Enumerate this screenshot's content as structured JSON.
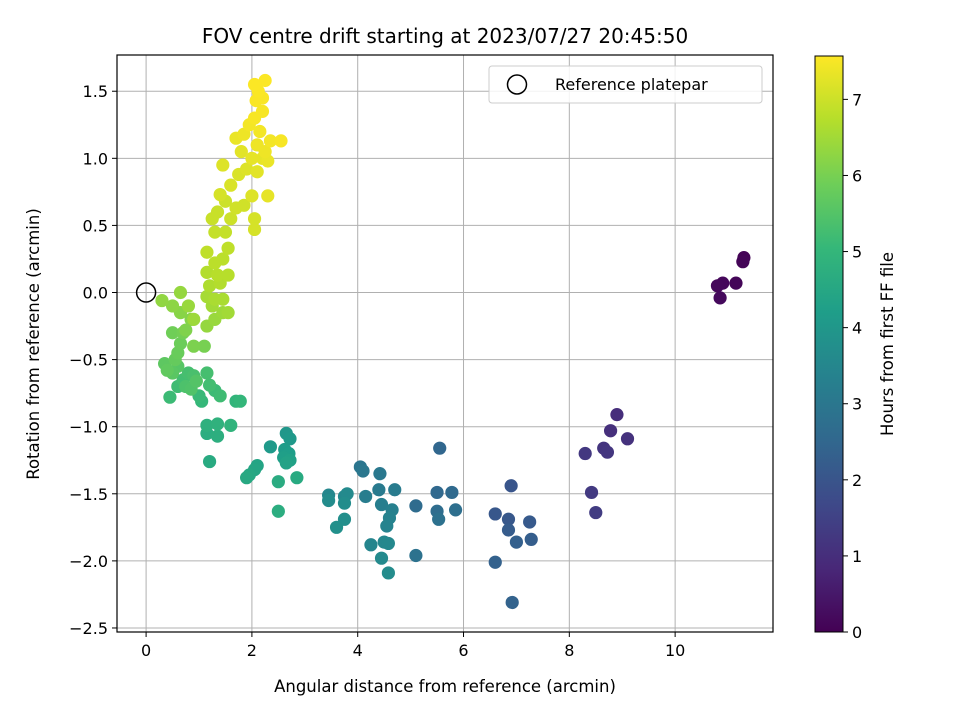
{
  "chart_data": {
    "type": "scatter",
    "title": "FOV centre drift starting at 2023/07/27 20:45:50",
    "xlabel": "Angular distance from reference (arcmin)",
    "ylabel": "Rotation from reference (arcmin)",
    "xlim": [
      -0.55,
      11.85
    ],
    "ylim": [
      -2.53,
      1.77
    ],
    "xticks": [
      0,
      2,
      4,
      6,
      8,
      10
    ],
    "yticks": [
      -2.5,
      -2.0,
      -1.5,
      -1.0,
      -0.5,
      0.0,
      0.5,
      1.0,
      1.5
    ],
    "xtick_labels": [
      "0",
      "2",
      "4",
      "6",
      "8",
      "10"
    ],
    "ytick_labels": [
      "−2.5",
      "−2.0",
      "−1.5",
      "−1.0",
      "−0.5",
      "0.0",
      "0.5",
      "1.0",
      "1.5"
    ],
    "grid": true,
    "legend": {
      "placement": "top-right",
      "entries": [
        {
          "label": "Reference platepar",
          "marker": "open-circle",
          "color": "#000000"
        }
      ]
    },
    "reference_point": {
      "x": 0.0,
      "y": 0.0
    },
    "colorbar": {
      "label": "Hours from first FF file",
      "range": [
        0,
        7.57
      ],
      "ticks": [
        0,
        1,
        2,
        3,
        4,
        5,
        6,
        7
      ],
      "tick_labels": [
        "0",
        "1",
        "2",
        "3",
        "4",
        "5",
        "6",
        "7"
      ],
      "colormap": "viridis",
      "stops": [
        "#440154",
        "#482878",
        "#3e4989",
        "#31688e",
        "#26828e",
        "#1f9e89",
        "#35b779",
        "#6ece58",
        "#b5de2b",
        "#fde725"
      ]
    },
    "points": [
      [
        11.3,
        0.26,
        0.05
      ],
      [
        11.28,
        0.23,
        0.08
      ],
      [
        11.15,
        0.07,
        0.1
      ],
      [
        10.9,
        0.07,
        0.13
      ],
      [
        10.8,
        0.05,
        0.15
      ],
      [
        10.85,
        -0.04,
        0.18
      ],
      [
        8.9,
        -0.91,
        1.0
      ],
      [
        8.78,
        -1.03,
        1.05
      ],
      [
        9.1,
        -1.09,
        1.1
      ],
      [
        8.65,
        -1.16,
        1.15
      ],
      [
        8.72,
        -1.19,
        1.2
      ],
      [
        8.3,
        -1.2,
        1.25
      ],
      [
        8.42,
        -1.49,
        1.3
      ],
      [
        8.5,
        -1.64,
        1.35
      ],
      [
        6.9,
        -1.44,
        2.0
      ],
      [
        6.6,
        -1.65,
        2.05
      ],
      [
        6.85,
        -1.69,
        2.1
      ],
      [
        7.25,
        -1.71,
        2.15
      ],
      [
        6.85,
        -1.77,
        2.2
      ],
      [
        7.28,
        -1.84,
        2.25
      ],
      [
        7.0,
        -1.86,
        2.3
      ],
      [
        6.6,
        -2.01,
        2.35
      ],
      [
        6.92,
        -2.31,
        2.4
      ],
      [
        5.55,
        -1.16,
        2.5
      ],
      [
        5.5,
        -1.49,
        2.55
      ],
      [
        5.78,
        -1.49,
        2.6
      ],
      [
        5.1,
        -1.59,
        2.65
      ],
      [
        5.5,
        -1.63,
        2.7
      ],
      [
        5.85,
        -1.62,
        2.75
      ],
      [
        5.53,
        -1.69,
        2.8
      ],
      [
        5.1,
        -1.96,
        2.85
      ],
      [
        4.05,
        -1.3,
        2.95
      ],
      [
        4.1,
        -1.33,
        3.0
      ],
      [
        4.42,
        -1.35,
        3.05
      ],
      [
        4.4,
        -1.47,
        3.1
      ],
      [
        4.7,
        -1.47,
        3.15
      ],
      [
        4.15,
        -1.52,
        3.2
      ],
      [
        4.45,
        -1.58,
        3.25
      ],
      [
        4.65,
        -1.62,
        3.3
      ],
      [
        4.6,
        -1.68,
        3.35
      ],
      [
        4.55,
        -1.74,
        3.4
      ],
      [
        4.25,
        -1.88,
        3.45
      ],
      [
        4.5,
        -1.86,
        3.5
      ],
      [
        4.58,
        -1.87,
        3.55
      ],
      [
        4.45,
        -1.98,
        3.6
      ],
      [
        4.58,
        -2.09,
        3.65
      ],
      [
        3.45,
        -1.51,
        3.5
      ],
      [
        3.75,
        -1.52,
        3.55
      ],
      [
        3.8,
        -1.5,
        3.6
      ],
      [
        3.45,
        -1.55,
        3.65
      ],
      [
        3.75,
        -1.57,
        3.7
      ],
      [
        3.75,
        -1.69,
        3.75
      ],
      [
        3.6,
        -1.75,
        3.8
      ],
      [
        2.65,
        -1.05,
        4.0
      ],
      [
        2.72,
        -1.09,
        4.05
      ],
      [
        2.35,
        -1.15,
        4.1
      ],
      [
        2.62,
        -1.17,
        4.15
      ],
      [
        2.7,
        -1.2,
        4.2
      ],
      [
        2.6,
        -1.23,
        4.25
      ],
      [
        2.72,
        -1.25,
        4.3
      ],
      [
        2.65,
        -1.27,
        4.35
      ],
      [
        2.1,
        -1.29,
        4.4
      ],
      [
        2.05,
        -1.32,
        4.45
      ],
      [
        1.95,
        -1.36,
        4.5
      ],
      [
        1.9,
        -1.38,
        4.55
      ],
      [
        2.85,
        -1.38,
        4.6
      ],
      [
        2.5,
        -1.41,
        4.65
      ],
      [
        2.5,
        -1.63,
        4.7
      ],
      [
        1.2,
        -1.26,
        4.6
      ],
      [
        1.15,
        -1.05,
        4.7
      ],
      [
        1.35,
        -1.07,
        4.75
      ],
      [
        1.15,
        -0.99,
        4.8
      ],
      [
        1.35,
        -0.98,
        4.85
      ],
      [
        1.6,
        -0.99,
        4.9
      ],
      [
        1.7,
        -0.81,
        4.95
      ],
      [
        1.78,
        -0.81,
        5.0
      ],
      [
        1.05,
        -0.81,
        5.05
      ],
      [
        1.0,
        -0.77,
        5.1
      ],
      [
        1.3,
        -0.73,
        5.15
      ],
      [
        1.4,
        -0.77,
        5.2
      ],
      [
        1.2,
        -0.69,
        5.25
      ],
      [
        1.15,
        -0.6,
        5.3
      ],
      [
        0.45,
        -0.78,
        5.15
      ],
      [
        0.6,
        -0.7,
        5.2
      ],
      [
        0.7,
        -0.65,
        5.25
      ],
      [
        0.8,
        -0.6,
        5.3
      ],
      [
        0.9,
        -0.62,
        5.35
      ],
      [
        0.75,
        -0.7,
        5.4
      ],
      [
        0.85,
        -0.72,
        5.45
      ],
      [
        0.95,
        -0.66,
        5.5
      ],
      [
        0.6,
        -0.55,
        5.55
      ],
      [
        0.5,
        -0.6,
        5.6
      ],
      [
        0.35,
        -0.53,
        5.65
      ],
      [
        0.4,
        -0.58,
        5.7
      ],
      [
        0.55,
        -0.5,
        5.75
      ],
      [
        0.6,
        -0.45,
        5.8
      ],
      [
        0.65,
        -0.38,
        5.85
      ],
      [
        0.5,
        -0.3,
        5.9
      ],
      [
        0.7,
        -0.3,
        5.95
      ],
      [
        1.1,
        -0.4,
        6.0
      ],
      [
        0.9,
        -0.4,
        6.05
      ],
      [
        0.75,
        -0.28,
        6.1
      ],
      [
        0.85,
        -0.2,
        6.15
      ],
      [
        0.65,
        -0.15,
        6.2
      ],
      [
        0.5,
        -0.1,
        6.25
      ],
      [
        0.3,
        -0.06,
        6.3
      ],
      [
        0.65,
        0.0,
        6.35
      ],
      [
        0.8,
        -0.1,
        6.4
      ],
      [
        0.9,
        -0.2,
        6.45
      ],
      [
        1.15,
        -0.25,
        6.35
      ],
      [
        1.3,
        -0.2,
        6.4
      ],
      [
        1.45,
        -0.15,
        6.45
      ],
      [
        1.25,
        -0.1,
        6.5
      ],
      [
        1.55,
        -0.15,
        6.5
      ],
      [
        1.15,
        -0.03,
        6.55
      ],
      [
        1.3,
        -0.05,
        6.6
      ],
      [
        1.45,
        -0.05,
        6.6
      ],
      [
        1.2,
        0.05,
        6.65
      ],
      [
        1.4,
        0.07,
        6.7
      ],
      [
        1.15,
        0.15,
        6.7
      ],
      [
        1.35,
        0.13,
        6.75
      ],
      [
        1.55,
        0.13,
        6.75
      ],
      [
        1.3,
        0.22,
        6.8
      ],
      [
        1.45,
        0.25,
        6.8
      ],
      [
        1.15,
        0.3,
        6.85
      ],
      [
        1.55,
        0.33,
        6.85
      ],
      [
        1.3,
        0.45,
        6.9
      ],
      [
        1.5,
        0.45,
        6.9
      ],
      [
        1.25,
        0.55,
        6.95
      ],
      [
        1.35,
        0.6,
        6.95
      ],
      [
        1.6,
        0.55,
        7.0
      ],
      [
        1.5,
        0.68,
        7.0
      ],
      [
        1.7,
        0.63,
        7.05
      ],
      [
        1.85,
        0.65,
        7.05
      ],
      [
        2.05,
        0.55,
        7.1
      ],
      [
        2.05,
        0.47,
        7.1
      ],
      [
        1.4,
        0.73,
        7.1
      ],
      [
        1.6,
        0.8,
        7.15
      ],
      [
        1.75,
        0.88,
        7.15
      ],
      [
        1.45,
        0.95,
        7.2
      ],
      [
        1.9,
        0.92,
        7.2
      ],
      [
        2.1,
        0.9,
        7.25
      ],
      [
        1.8,
        1.05,
        7.25
      ],
      [
        2.0,
        1.0,
        7.3
      ],
      [
        2.2,
        1.0,
        7.3
      ],
      [
        2.3,
        0.98,
        7.35
      ],
      [
        1.7,
        1.15,
        7.35
      ],
      [
        1.85,
        1.18,
        7.4
      ],
      [
        2.1,
        1.1,
        7.4
      ],
      [
        2.25,
        1.05,
        7.4
      ],
      [
        1.95,
        1.25,
        7.45
      ],
      [
        2.15,
        1.2,
        7.45
      ],
      [
        2.35,
        1.13,
        7.45
      ],
      [
        2.55,
        1.13,
        7.5
      ],
      [
        2.05,
        1.3,
        7.5
      ],
      [
        2.2,
        1.35,
        7.5
      ],
      [
        2.2,
        1.45,
        7.52
      ],
      [
        2.08,
        1.43,
        7.52
      ],
      [
        2.12,
        1.5,
        7.54
      ],
      [
        2.25,
        1.58,
        7.55
      ],
      [
        2.05,
        1.55,
        7.55
      ],
      [
        2.0,
        0.72,
        7.2
      ],
      [
        2.3,
        0.72,
        7.3
      ]
    ]
  }
}
